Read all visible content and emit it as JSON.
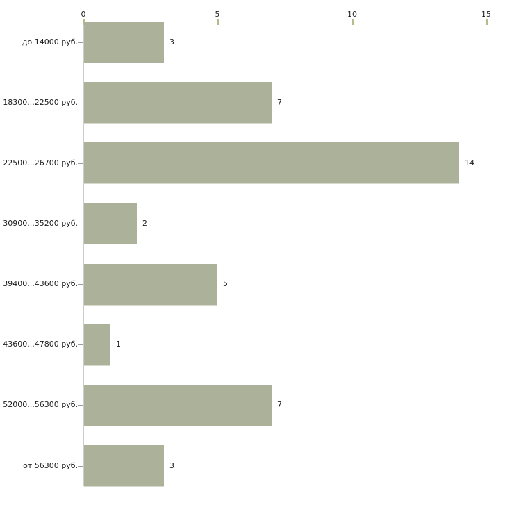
{
  "chart_data": {
    "type": "bar",
    "orientation": "horizontal",
    "title": "",
    "xlabel": "",
    "ylabel": "",
    "categories": [
      "до 14000 руб.",
      "18300...22500 руб.",
      "22500...26700 руб.",
      "30900...35200 руб.",
      "39400...43600 руб.",
      "43600...47800 руб.",
      "52000...56300 руб.",
      "от 56300 руб."
    ],
    "values": [
      3,
      7,
      14,
      2,
      5,
      1,
      7,
      3
    ],
    "xlim": [
      0,
      15
    ],
    "x_ticks": [
      "0",
      "5",
      "10",
      "15"
    ],
    "x_tick_values": [
      0,
      5,
      10,
      15
    ],
    "axis_position": "top",
    "grid": false,
    "legend": false,
    "value_labels": true,
    "colors": {
      "bar": "#acb199",
      "bar_edge_bottom": "#d6d9cb",
      "axis_line": "#c7c8c0",
      "y_axis_line": "#cccccc",
      "x_tick_mark": "#b5bb8d",
      "y_tick_mark": "#9b9b9b",
      "text": "#1c1c1c",
      "background": "#ffffff"
    }
  }
}
